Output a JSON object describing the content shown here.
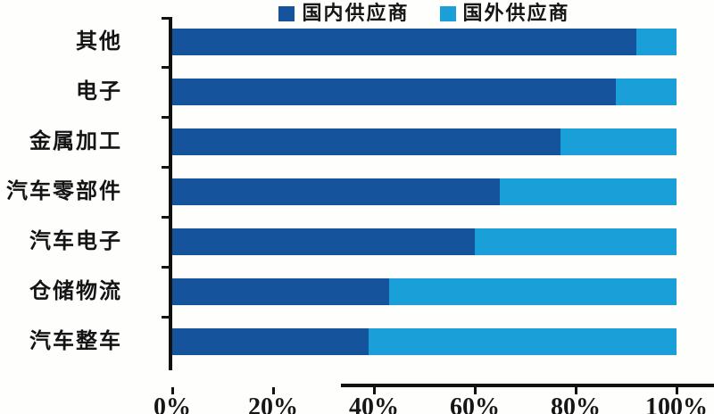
{
  "chart_data": {
    "type": "bar",
    "orientation": "horizontal",
    "stacked": true,
    "title": "",
    "xlabel": "",
    "ylabel": "",
    "categories": [
      "其他",
      "电子",
      "金属加工",
      "汽车零部件",
      "汽车电子",
      "仓储物流",
      "汽车整车"
    ],
    "series": [
      {
        "name": "国内供应商",
        "color": "#15549D",
        "values": [
          92,
          88,
          77,
          65,
          60,
          43,
          39
        ]
      },
      {
        "name": "国外供应商",
        "color": "#1A9FD8",
        "values": [
          8,
          12,
          23,
          35,
          40,
          57,
          61
        ]
      }
    ],
    "xlim": [
      0,
      100
    ],
    "x_ticks": [
      "0%",
      "20%",
      "40%",
      "60%",
      "80%",
      "100%"
    ],
    "x_tick_values": [
      0,
      20,
      40,
      60,
      80,
      100
    ],
    "legend_position": "top-center",
    "grid": false,
    "axis_color": "#111111",
    "text_color": "#161616",
    "background_color": "#fefefd"
  }
}
